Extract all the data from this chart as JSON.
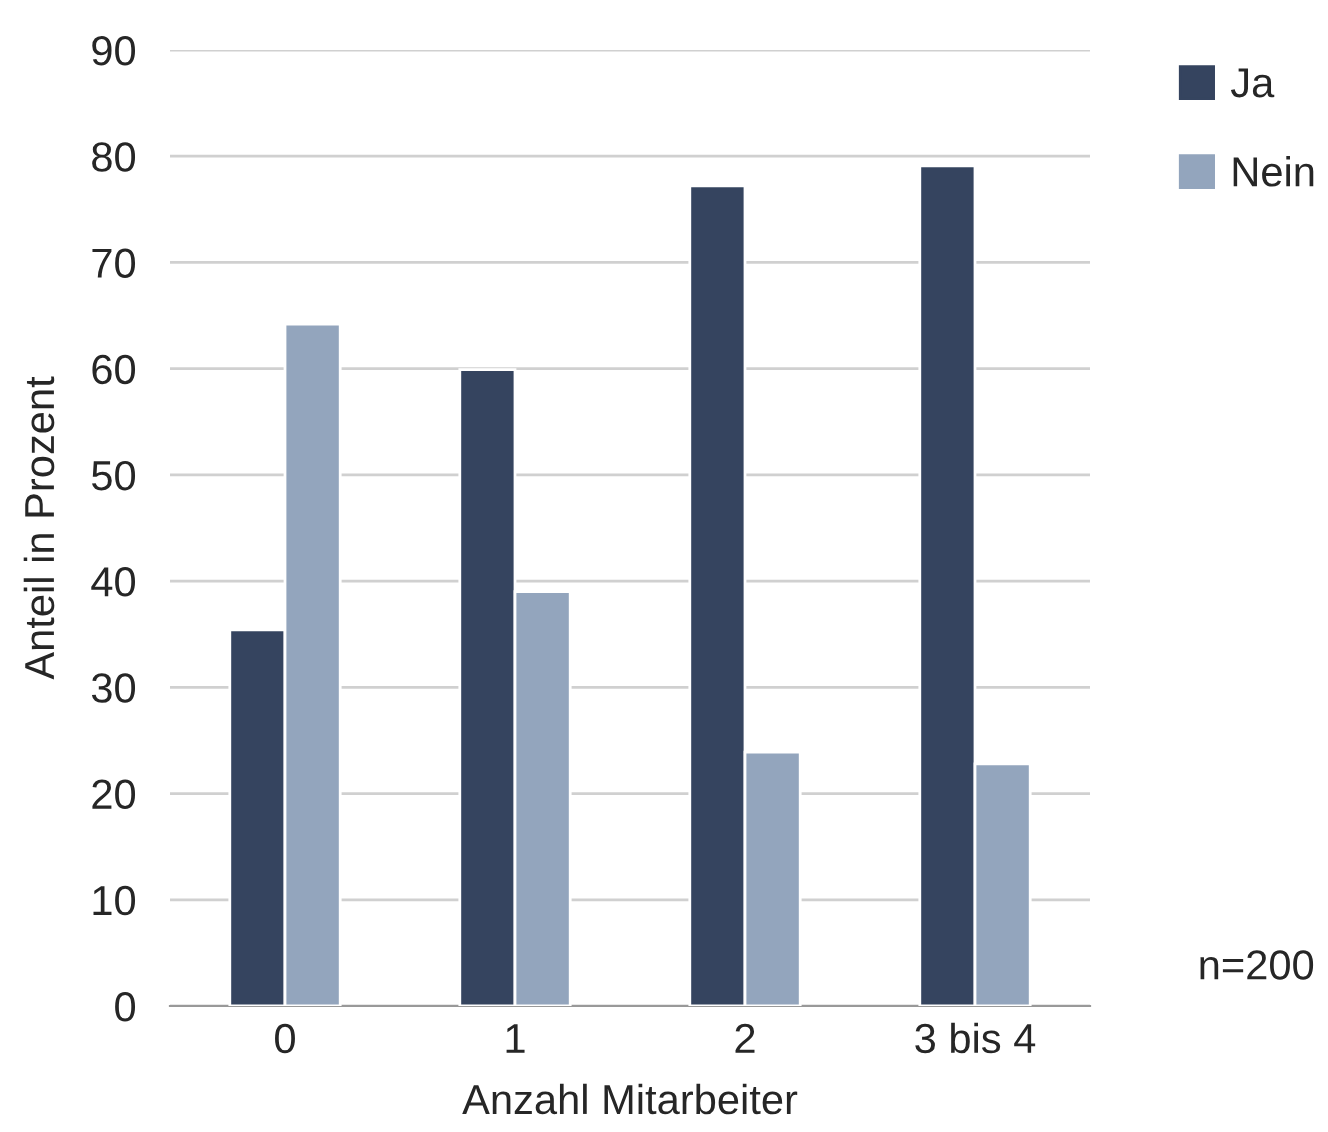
{
  "chart_data": {
    "type": "bar",
    "xlabel": "Anzahl Mitarbeiter",
    "ylabel": "Anteil in Prozent",
    "categories": [
      "0",
      "1",
      "2",
      "3 bis 4"
    ],
    "series": [
      {
        "name": "Ja",
        "color": "#35445f",
        "values": [
          35.4,
          59.9,
          77.2,
          79.1
        ]
      },
      {
        "name": "Nein",
        "color": "#93a5bd",
        "values": [
          64.2,
          39.0,
          23.9,
          22.8
        ]
      }
    ],
    "ylim": [
      0,
      90
    ],
    "yticks": [
      0,
      10,
      20,
      30,
      40,
      50,
      60,
      70,
      80,
      90
    ],
    "grid": "y",
    "legend": "top right",
    "annotations": [
      "n=200"
    ]
  }
}
